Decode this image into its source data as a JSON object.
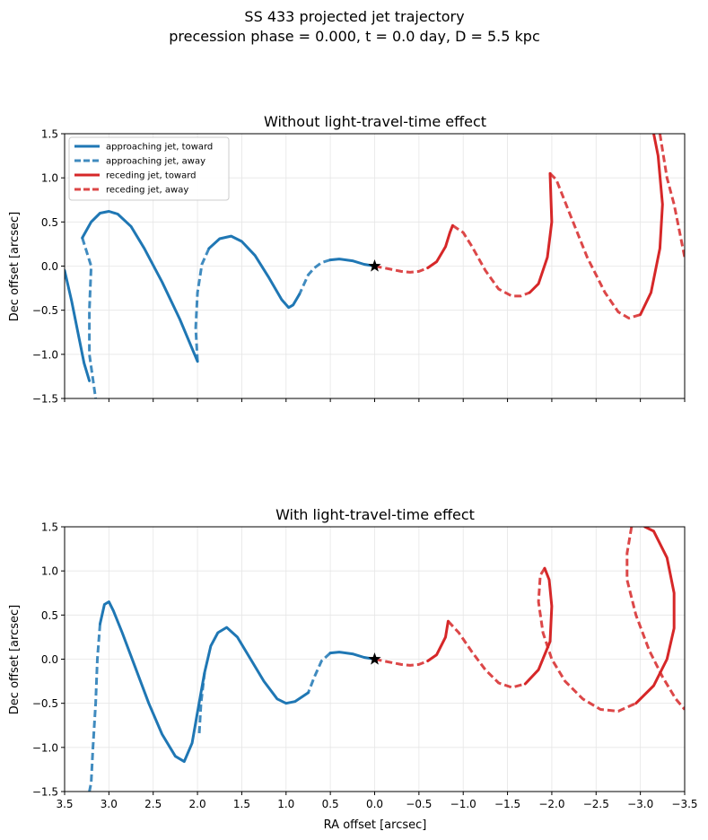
{
  "figure": {
    "suptitle_line1": "SS 433 projected jet trajectory",
    "suptitle_line2": "precession phase = 0.000, t = 0.0 day, D = 5.5 kpc"
  },
  "colors": {
    "approaching": "#1f77b4",
    "receding": "#d62728",
    "grid": "#e6e6e6"
  },
  "chart_data": [
    {
      "type": "line",
      "title": "Without light-travel-time effect",
      "xlabel": "",
      "ylabel": "Dec offset [arcsec]",
      "xlim": [
        3.5,
        -3.5
      ],
      "ylim": [
        -1.5,
        1.5
      ],
      "x_ticks": [
        3.5,
        3.0,
        2.5,
        2.0,
        1.5,
        1.0,
        0.5,
        0.0,
        -0.5,
        -1.0,
        -1.5,
        -2.0,
        -2.5,
        -3.0,
        -3.5
      ],
      "y_ticks": [
        -1.5,
        -1.0,
        -0.5,
        0.0,
        0.5,
        1.0,
        1.5
      ],
      "y_tick_labels": [
        "−1.5",
        "−1.0",
        "−0.5",
        "0.0",
        "0.5",
        "1.0",
        "1.5"
      ],
      "x_tick_labels_visible": false,
      "grid": true,
      "legend_position": "top-left",
      "source_marker": {
        "x": 0.0,
        "y": 0.0,
        "symbol": "star"
      },
      "series": [
        {
          "name": "approaching jet, toward",
          "color": "approaching",
          "style": "solid",
          "segments": [
            [
              [
                0.0,
                0.0
              ],
              [
                0.12,
                0.02
              ],
              [
                0.25,
                0.06
              ],
              [
                0.4,
                0.08
              ],
              [
                0.5,
                0.07
              ]
            ],
            [
              [
                0.85,
                -0.32
              ],
              [
                0.92,
                -0.44
              ],
              [
                0.97,
                -0.47
              ],
              [
                1.05,
                -0.38
              ],
              [
                1.2,
                -0.12
              ],
              [
                1.35,
                0.12
              ],
              [
                1.5,
                0.28
              ],
              [
                1.62,
                0.34
              ],
              [
                1.75,
                0.31
              ],
              [
                1.87,
                0.2
              ]
            ],
            [
              [
                2.0,
                -1.08
              ],
              [
                2.2,
                -0.6
              ],
              [
                2.4,
                -0.18
              ],
              [
                2.6,
                0.2
              ],
              [
                2.75,
                0.45
              ],
              [
                2.9,
                0.59
              ],
              [
                3.0,
                0.62
              ],
              [
                3.1,
                0.6
              ],
              [
                3.2,
                0.5
              ],
              [
                3.3,
                0.32
              ]
            ],
            [
              [
                3.5,
                -0.05
              ],
              [
                3.42,
                -0.4
              ],
              [
                3.35,
                -0.75
              ],
              [
                3.28,
                -1.1
              ],
              [
                3.22,
                -1.3
              ]
            ]
          ]
        },
        {
          "name": "approaching jet, away",
          "color": "approaching",
          "style": "dashed",
          "segments": [
            [
              [
                0.5,
                0.07
              ],
              [
                0.6,
                0.04
              ],
              [
                0.68,
                -0.02
              ],
              [
                0.75,
                -0.1
              ],
              [
                0.85,
                -0.32
              ]
            ],
            [
              [
                1.87,
                0.2
              ],
              [
                1.95,
                0.02
              ],
              [
                2.0,
                -0.3
              ],
              [
                2.02,
                -0.7
              ],
              [
                2.0,
                -1.08
              ]
            ],
            [
              [
                3.3,
                0.32
              ],
              [
                3.2,
                0.0
              ],
              [
                3.22,
                -0.5
              ],
              [
                3.22,
                -1.0
              ],
              [
                3.15,
                -1.5
              ]
            ]
          ]
        },
        {
          "name": "receding jet, toward",
          "color": "receding",
          "style": "solid",
          "segments": [
            [
              [
                -0.6,
                -0.02
              ],
              [
                -0.7,
                0.05
              ],
              [
                -0.8,
                0.22
              ],
              [
                -0.85,
                0.38
              ],
              [
                -0.88,
                0.46
              ]
            ],
            [
              [
                -1.75,
                -0.3
              ],
              [
                -1.85,
                -0.2
              ],
              [
                -1.95,
                0.1
              ],
              [
                -2.0,
                0.5
              ],
              [
                -1.98,
                1.05
              ]
            ],
            [
              [
                -3.0,
                -0.55
              ],
              [
                -3.12,
                -0.3
              ],
              [
                -3.22,
                0.2
              ],
              [
                -3.25,
                0.7
              ],
              [
                -3.2,
                1.25
              ],
              [
                -3.15,
                1.5
              ]
            ]
          ]
        },
        {
          "name": "receding jet, away",
          "color": "receding",
          "style": "dashed",
          "segments": [
            [
              [
                0.0,
                0.0
              ],
              [
                -0.15,
                -0.03
              ],
              [
                -0.3,
                -0.06
              ],
              [
                -0.4,
                -0.07
              ],
              [
                -0.5,
                -0.06
              ],
              [
                -0.6,
                -0.02
              ]
            ],
            [
              [
                -0.88,
                0.46
              ],
              [
                -1.0,
                0.38
              ],
              [
                -1.1,
                0.22
              ],
              [
                -1.25,
                -0.05
              ],
              [
                -1.4,
                -0.26
              ],
              [
                -1.55,
                -0.34
              ],
              [
                -1.65,
                -0.34
              ],
              [
                -1.75,
                -0.3
              ]
            ],
            [
              [
                -1.98,
                1.05
              ],
              [
                -2.05,
                0.98
              ],
              [
                -2.2,
                0.6
              ],
              [
                -2.4,
                0.1
              ],
              [
                -2.6,
                -0.3
              ],
              [
                -2.75,
                -0.52
              ],
              [
                -2.87,
                -0.59
              ],
              [
                -3.0,
                -0.55
              ]
            ],
            [
              [
                -3.22,
                1.5
              ],
              [
                -3.3,
                1.0
              ],
              [
                -3.38,
                0.7
              ],
              [
                -3.45,
                0.35
              ],
              [
                -3.5,
                0.1
              ]
            ]
          ]
        }
      ]
    },
    {
      "type": "line",
      "title": "With light-travel-time effect",
      "xlabel": "RA offset [arcsec]",
      "ylabel": "Dec offset [arcsec]",
      "xlim": [
        3.5,
        -3.5
      ],
      "ylim": [
        -1.5,
        1.5
      ],
      "x_ticks": [
        3.5,
        3.0,
        2.5,
        2.0,
        1.5,
        1.0,
        0.5,
        0.0,
        -0.5,
        -1.0,
        -1.5,
        -2.0,
        -2.5,
        -3.0,
        -3.5
      ],
      "x_tick_labels": [
        "3.5",
        "3.0",
        "2.5",
        "2.0",
        "1.5",
        "1.0",
        "0.5",
        "0.0",
        "−0.5",
        "−1.0",
        "−1.5",
        "−2.0",
        "−2.5",
        "−3.0",
        "−3.5"
      ],
      "y_ticks": [
        -1.5,
        -1.0,
        -0.5,
        0.0,
        0.5,
        1.0,
        1.5
      ],
      "y_tick_labels": [
        "−1.5",
        "−1.0",
        "−0.5",
        "0.0",
        "0.5",
        "1.0",
        "1.5"
      ],
      "grid": true,
      "source_marker": {
        "x": 0.0,
        "y": 0.0,
        "symbol": "star"
      },
      "series": [
        {
          "name": "approaching jet, toward",
          "color": "approaching",
          "style": "solid",
          "segments": [
            [
              [
                0.0,
                0.0
              ],
              [
                0.12,
                0.02
              ],
              [
                0.25,
                0.06
              ],
              [
                0.4,
                0.08
              ],
              [
                0.5,
                0.07
              ]
            ],
            [
              [
                0.75,
                -0.38
              ],
              [
                0.9,
                -0.48
              ],
              [
                1.0,
                -0.5
              ],
              [
                1.1,
                -0.45
              ],
              [
                1.25,
                -0.25
              ],
              [
                1.4,
                0.0
              ],
              [
                1.55,
                0.25
              ],
              [
                1.67,
                0.36
              ],
              [
                1.77,
                0.3
              ],
              [
                1.85,
                0.15
              ],
              [
                1.92,
                -0.15
              ],
              [
                2.0,
                -0.6
              ],
              [
                2.06,
                -0.95
              ],
              [
                2.15,
                -1.16
              ],
              [
                2.25,
                -1.1
              ],
              [
                2.4,
                -0.85
              ],
              [
                2.55,
                -0.5
              ],
              [
                2.7,
                -0.1
              ],
              [
                2.85,
                0.3
              ],
              [
                2.95,
                0.55
              ],
              [
                3.0,
                0.65
              ],
              [
                3.05,
                0.62
              ],
              [
                3.1,
                0.4
              ]
            ]
          ]
        },
        {
          "name": "approaching jet, away",
          "color": "approaching",
          "style": "dashed",
          "segments": [
            [
              [
                0.5,
                0.07
              ],
              [
                0.6,
                -0.02
              ],
              [
                0.68,
                -0.2
              ],
              [
                0.75,
                -0.38
              ]
            ],
            [
              [
                1.92,
                -0.15
              ],
              [
                1.96,
                -0.5
              ],
              [
                1.98,
                -0.85
              ]
            ],
            [
              [
                3.1,
                0.4
              ],
              [
                3.13,
                0.0
              ],
              [
                3.15,
                -0.5
              ],
              [
                3.18,
                -1.0
              ],
              [
                3.2,
                -1.4
              ],
              [
                3.22,
                -1.5
              ]
            ]
          ]
        },
        {
          "name": "receding jet, toward",
          "color": "receding",
          "style": "solid",
          "segments": [
            [
              [
                -0.6,
                -0.02
              ],
              [
                -0.7,
                0.05
              ],
              [
                -0.8,
                0.25
              ],
              [
                -0.83,
                0.43
              ]
            ],
            [
              [
                -1.7,
                -0.28
              ],
              [
                -1.85,
                -0.12
              ],
              [
                -1.98,
                0.2
              ],
              [
                -2.0,
                0.6
              ],
              [
                -1.97,
                0.9
              ],
              [
                -1.92,
                1.03
              ]
            ],
            [
              [
                -2.95,
                -0.5
              ],
              [
                -3.15,
                -0.3
              ],
              [
                -3.3,
                0.0
              ],
              [
                -3.38,
                0.35
              ],
              [
                -3.38,
                0.75
              ],
              [
                -3.3,
                1.15
              ],
              [
                -3.15,
                1.45
              ],
              [
                -3.05,
                1.5
              ]
            ]
          ]
        },
        {
          "name": "receding jet, away",
          "color": "receding",
          "style": "dashed",
          "segments": [
            [
              [
                0.0,
                0.0
              ],
              [
                -0.15,
                -0.03
              ],
              [
                -0.3,
                -0.06
              ],
              [
                -0.4,
                -0.07
              ],
              [
                -0.5,
                -0.06
              ],
              [
                -0.6,
                -0.02
              ]
            ],
            [
              [
                -0.83,
                0.43
              ],
              [
                -0.95,
                0.3
              ],
              [
                -1.1,
                0.08
              ],
              [
                -1.25,
                -0.12
              ],
              [
                -1.4,
                -0.27
              ],
              [
                -1.55,
                -0.32
              ],
              [
                -1.7,
                -0.28
              ]
            ],
            [
              [
                -1.92,
                1.03
              ],
              [
                -1.87,
                0.95
              ],
              [
                -1.85,
                0.65
              ],
              [
                -1.9,
                0.3
              ],
              [
                -2.0,
                0.0
              ],
              [
                -2.15,
                -0.25
              ],
              [
                -2.35,
                -0.45
              ],
              [
                -2.55,
                -0.57
              ],
              [
                -2.75,
                -0.59
              ],
              [
                -2.95,
                -0.5
              ]
            ],
            [
              [
                -2.9,
                1.5
              ],
              [
                -2.85,
                1.2
              ],
              [
                -2.85,
                0.9
              ],
              [
                -2.95,
                0.5
              ],
              [
                -3.1,
                0.1
              ],
              [
                -3.25,
                -0.2
              ],
              [
                -3.4,
                -0.45
              ],
              [
                -3.5,
                -0.57
              ]
            ]
          ]
        }
      ]
    }
  ]
}
